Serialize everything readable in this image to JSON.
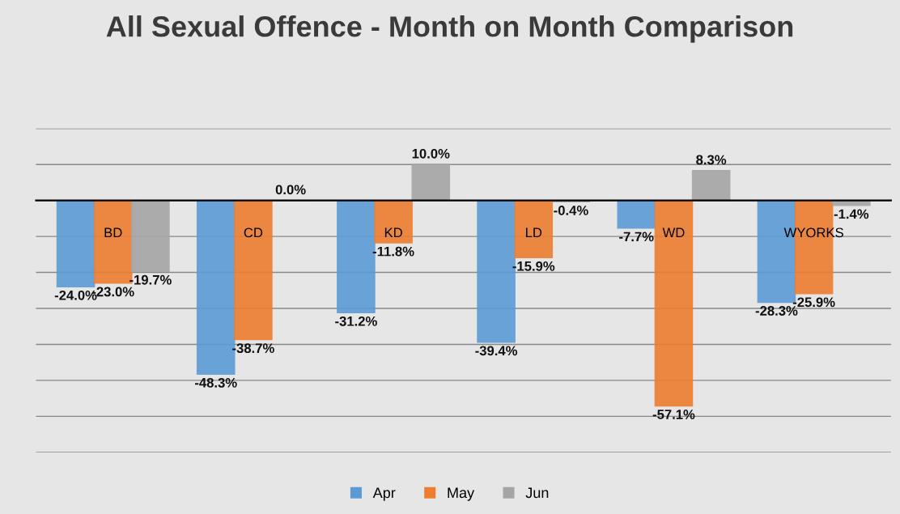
{
  "chart_data": {
    "type": "bar",
    "title": "All Sexual Offence - Month on Month Comparison",
    "categories": [
      "BD",
      "CD",
      "KD",
      "LD",
      "WD",
      "WYORKS"
    ],
    "series": [
      {
        "name": "Apr",
        "color": "#5b9bd5",
        "values": [
          -24.0,
          -48.3,
          -31.2,
          -39.4,
          -7.7,
          -28.3
        ],
        "value_labels": [
          "-24.0%",
          "-48.3%",
          "-31.2%",
          "-39.4%",
          "-7.7%",
          "-28.3%"
        ]
      },
      {
        "name": "May",
        "color": "#ed7d31",
        "values": [
          -23.0,
          -38.7,
          -11.8,
          -15.9,
          -57.1,
          -25.9
        ],
        "value_labels": [
          "-23.0%",
          "-38.7%",
          "-11.8%",
          "-15.9%",
          "-57.1%",
          "-25.9%"
        ]
      },
      {
        "name": "Jun",
        "color": "#a5a5a5",
        "values": [
          -19.7,
          0.0,
          10.0,
          -0.4,
          8.3,
          -1.4
        ],
        "value_labels": [
          "-19.7%",
          "0.0%",
          "10.0%",
          "-0.4%",
          "8.3%",
          "-1.4%"
        ]
      }
    ],
    "ylim": [
      -70,
      20
    ],
    "yticks": [
      {
        "value": -70,
        "label": null
      },
      {
        "value": -60,
        "label": null
      },
      {
        "value": -50,
        "label": null
      },
      {
        "value": -40,
        "label": null
      },
      {
        "value": -30,
        "label": null
      },
      {
        "value": -20,
        "label": null
      },
      {
        "value": -10,
        "label": null
      },
      {
        "value": 0,
        "label": null
      },
      {
        "value": 10,
        "label": null
      },
      {
        "value": 20,
        "label": null
      }
    ],
    "tick_labels": "x",
    "grid": "y",
    "legend": "bottom"
  }
}
